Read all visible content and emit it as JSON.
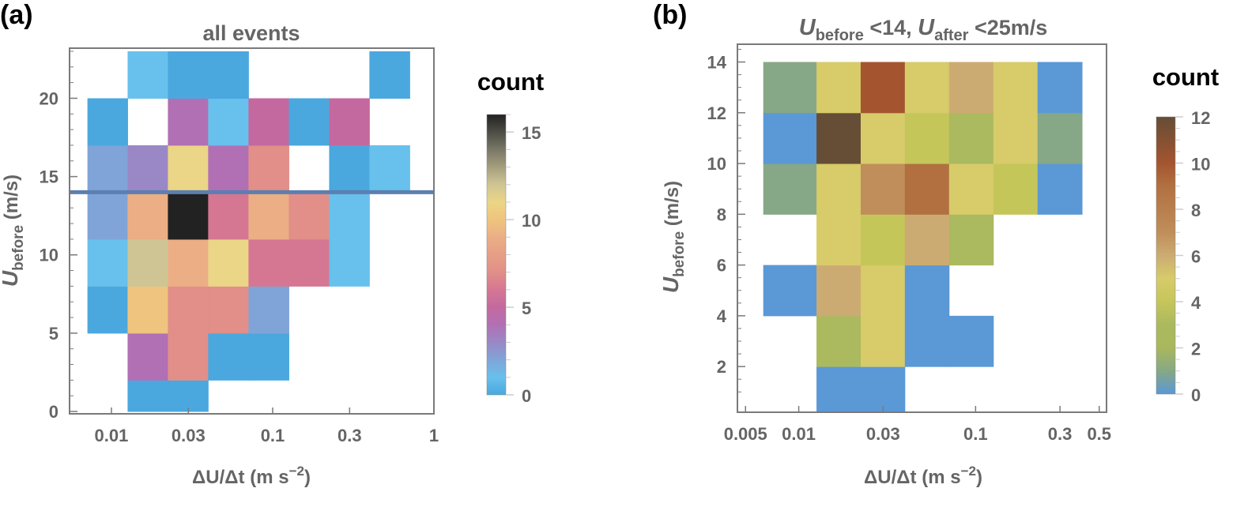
{
  "chart_data": [
    {
      "panel": "(a)",
      "type": "heatmap",
      "title": "all events",
      "xlabel": "ΔU/Δt (m s⁻²)",
      "xlabel_parts": {
        "main": "ΔU/Δt (m s",
        "sup": "−2",
        "close": ")"
      },
      "ylabel": "U_before (m/s)",
      "ylabel_parts": {
        "italic": "U",
        "sub": "before",
        "rest": " (m/s)"
      },
      "xscale": "log",
      "xlim": [
        0.0055,
        1.0
      ],
      "ylim": [
        0,
        23.2
      ],
      "xticks": [
        {
          "v": 0.01,
          "label": "0.01"
        },
        {
          "v": 0.03,
          "label": "0.03"
        },
        {
          "v": 0.1,
          "label": "0.1"
        },
        {
          "v": 0.3,
          "label": "0.3"
        },
        {
          "v": 1,
          "label": "1"
        }
      ],
      "yticks": [
        {
          "v": 0,
          "label": "0"
        },
        {
          "v": 5,
          "label": "5"
        },
        {
          "v": 10,
          "label": "10"
        },
        {
          "v": 15,
          "label": "15"
        },
        {
          "v": 20,
          "label": "20"
        }
      ],
      "x_bin_edges": [
        0.0071,
        0.0126,
        0.0224,
        0.0398,
        0.0708,
        0.126,
        0.224,
        0.398,
        0.708
      ],
      "y_bin_edges": [
        0,
        2,
        5,
        8,
        11,
        14,
        17,
        20,
        23
      ],
      "counts": [
        [
          null,
          0,
          0,
          null,
          null,
          null,
          null,
          null
        ],
        [
          null,
          4,
          7,
          0,
          0,
          null,
          null,
          null
        ],
        [
          0,
          10,
          7,
          7,
          2,
          null,
          null,
          null
        ],
        [
          1,
          12,
          9,
          11,
          6,
          6,
          1,
          null
        ],
        [
          2,
          9,
          16,
          6,
          9,
          7,
          1,
          null
        ],
        [
          2,
          3,
          11,
          4,
          7,
          null,
          0,
          1
        ],
        [
          0,
          null,
          4,
          1,
          5,
          0,
          5,
          null
        ],
        [
          null,
          1,
          0,
          0,
          null,
          null,
          null,
          0
        ]
      ],
      "reference_line": {
        "y": 14,
        "color": "#5b7fb0"
      },
      "colorbar": {
        "title": "count",
        "range": [
          0,
          16
        ],
        "ticks": [
          0,
          5,
          10,
          15
        ],
        "stops": [
          {
            "v": 0,
            "color": "#4aa8df"
          },
          {
            "v": 1,
            "color": "#68c0ec"
          },
          {
            "v": 2,
            "color": "#80a4d8"
          },
          {
            "v": 3,
            "color": "#9a88c6"
          },
          {
            "v": 4,
            "color": "#b170b4"
          },
          {
            "v": 5,
            "color": "#c4699f"
          },
          {
            "v": 6,
            "color": "#d57793"
          },
          {
            "v": 7,
            "color": "#e18f88"
          },
          {
            "v": 9,
            "color": "#ebae85"
          },
          {
            "v": 10,
            "color": "#efc47e"
          },
          {
            "v": 11,
            "color": "#ebd586"
          },
          {
            "v": 12,
            "color": "#cfc594"
          },
          {
            "v": 14,
            "color": "#7a7766"
          },
          {
            "v": 16,
            "color": "#222222"
          }
        ]
      }
    },
    {
      "panel": "(b)",
      "type": "heatmap",
      "title": "U_before <14, U_after <25m/s",
      "title_parts": {
        "u1": "U",
        "sub1": "before",
        "mid": " <14, ",
        "u2": "U",
        "sub2": "after",
        "end": " <25m/s"
      },
      "xlabel": "ΔU/Δt (m s⁻²)",
      "xlabel_parts": {
        "main": "ΔU/Δt (m s",
        "sup": "−2",
        "close": ")"
      },
      "ylabel": "U_before (m/s)",
      "ylabel_parts": {
        "italic": "U",
        "sub": "before",
        "rest": " (m/s)"
      },
      "xscale": "log",
      "xlim": [
        0.0045,
        0.55
      ],
      "ylim": [
        0.2,
        14.7
      ],
      "xticks": [
        {
          "v": 0.005,
          "label": "0.005"
        },
        {
          "v": 0.01,
          "label": "0.01"
        },
        {
          "v": 0.03,
          "label": "0.03"
        },
        {
          "v": 0.1,
          "label": "0.1"
        },
        {
          "v": 0.3,
          "label": "0.3"
        },
        {
          "v": 0.5,
          "label": "0.5"
        }
      ],
      "yticks": [
        {
          "v": 2,
          "label": "2"
        },
        {
          "v": 4,
          "label": "4"
        },
        {
          "v": 6,
          "label": "6"
        },
        {
          "v": 8,
          "label": "8"
        },
        {
          "v": 10,
          "label": "10"
        },
        {
          "v": 12,
          "label": "12"
        },
        {
          "v": 14,
          "label": "14"
        }
      ],
      "x_bin_edges": [
        0.0063,
        0.0126,
        0.0224,
        0.0398,
        0.0708,
        0.126,
        0.224,
        0.4
      ],
      "y_bin_edges": [
        0.2,
        2,
        4,
        6,
        8,
        10,
        12,
        14
      ],
      "counts": [
        [
          null,
          0,
          0,
          null,
          null,
          null,
          null
        ],
        [
          null,
          3,
          5,
          0,
          0,
          null,
          null
        ],
        [
          0,
          6,
          5,
          0,
          null,
          null,
          null
        ],
        [
          null,
          5,
          4,
          6,
          3,
          null,
          null
        ],
        [
          1,
          5,
          7,
          9,
          5,
          4,
          0
        ],
        [
          0,
          12,
          5,
          4,
          3,
          5,
          1
        ],
        [
          1,
          5,
          10,
          5,
          6,
          5,
          0
        ]
      ],
      "colorbar": {
        "title": "count",
        "range": [
          0,
          12
        ],
        "ticks": [
          0,
          2,
          4,
          6,
          8,
          10,
          12
        ],
        "stops": [
          {
            "v": 0,
            "color": "#5b98d6"
          },
          {
            "v": 1,
            "color": "#86a886"
          },
          {
            "v": 2,
            "color": "#a9b85d"
          },
          {
            "v": 3,
            "color": "#abb95f"
          },
          {
            "v": 4,
            "color": "#c5c65a"
          },
          {
            "v": 5,
            "color": "#d7cb6a"
          },
          {
            "v": 6,
            "color": "#ccab72"
          },
          {
            "v": 7,
            "color": "#bf8e5b"
          },
          {
            "v": 9,
            "color": "#b27040"
          },
          {
            "v": 10,
            "color": "#a4552f"
          },
          {
            "v": 12,
            "color": "#654d36"
          }
        ]
      }
    }
  ],
  "labels": {
    "panel_a": "(a)",
    "panel_b": "(b)"
  }
}
